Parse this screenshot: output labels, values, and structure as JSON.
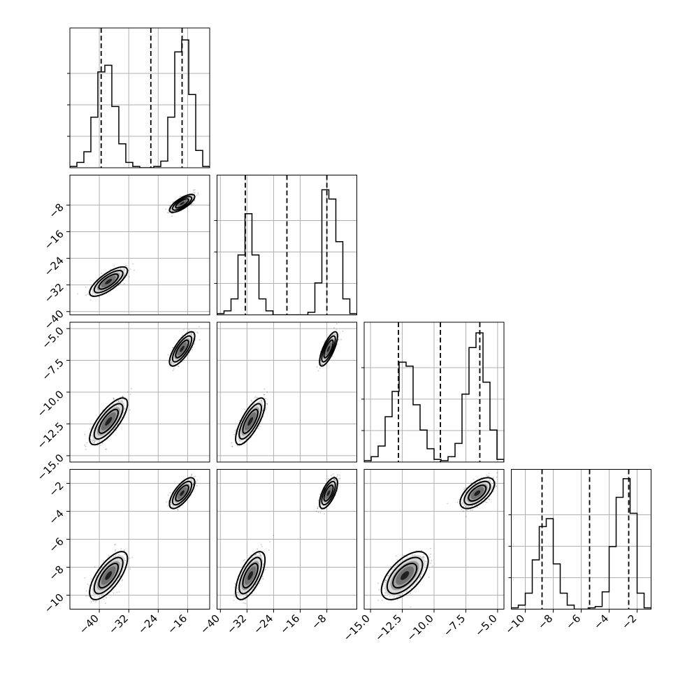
{
  "chart_data": {
    "type": "corner",
    "n_params": 4,
    "grid": true,
    "colors": {
      "main": "#000000",
      "grid": "#b0b0b0",
      "background": "#ffffff"
    },
    "params": [
      {
        "range": [
          -48,
          -10
        ],
        "ticks": [
          -40,
          -32,
          -24,
          -16
        ],
        "tick_labels": [
          "−40",
          "−32",
          "−24",
          "−16"
        ],
        "modes": [
          {
            "mean": -37.5,
            "sd": 2.1,
            "weight": 0.5
          },
          {
            "mean": -17.5,
            "sd": 1.4,
            "weight": 0.5
          }
        ],
        "quantiles": [
          -39.5,
          -26.0,
          -17.5
        ],
        "histogram": {
          "edges": [
            -48,
            -46.1,
            -44.2,
            -42.3,
            -40.4,
            -38.5,
            -36.6,
            -34.7,
            -32.8,
            -30.9,
            -29,
            -27.1,
            -25.2,
            -23.3,
            -21.4,
            -19.5,
            -17.6,
            -15.7,
            -13.8,
            -11.9,
            -10
          ],
          "counts": [
            0.01,
            0.04,
            0.12,
            0.38,
            0.72,
            0.77,
            0.46,
            0.18,
            0.04,
            0.01,
            0.0,
            0.0,
            0.01,
            0.05,
            0.38,
            0.87,
            0.96,
            0.55,
            0.13,
            0.01
          ]
        }
      },
      {
        "range": [
          -41,
          1
        ],
        "ticks": [
          -40,
          -32,
          -24,
          -16,
          -8
        ],
        "tick_labels": [
          "−40",
          "−32",
          "−24",
          "−16",
          "−8"
        ],
        "modes": [
          {
            "mean": -31.0,
            "sd": 1.8,
            "weight": 0.5
          },
          {
            "mean": -7.5,
            "sd": 1.1,
            "weight": 0.5
          }
        ],
        "quantiles": [
          -32.5,
          -20.0,
          -8.0
        ],
        "histogram": {
          "edges": [
            -41,
            -38.9,
            -36.8,
            -34.7,
            -32.6,
            -30.5,
            -28.4,
            -26.3,
            -24.2,
            -22.1,
            -20,
            -17.9,
            -15.8,
            -13.7,
            -11.6,
            -9.5,
            -7.4,
            -5.3,
            -3.2,
            -1.1,
            1
          ],
          "counts": [
            0.01,
            0.03,
            0.12,
            0.45,
            0.76,
            0.45,
            0.12,
            0.03,
            0.0,
            0.0,
            0.0,
            0.0,
            0.0,
            0.02,
            0.24,
            0.94,
            0.87,
            0.55,
            0.12,
            0.01
          ]
        }
      },
      {
        "range": [
          -15.5,
          -4.5
        ],
        "ticks": [
          -15.0,
          -12.5,
          -10.0,
          -7.5,
          -5.0
        ],
        "tick_labels": [
          "−15.0",
          "−12.5",
          "−10.0",
          "−7.5",
          "−5.0"
        ],
        "modes": [
          {
            "mean": -12.3,
            "sd": 0.75,
            "weight": 0.5
          },
          {
            "mean": -6.6,
            "sd": 0.55,
            "weight": 0.5
          }
        ],
        "quantiles": [
          -12.8,
          -9.5,
          -6.4
        ],
        "histogram": {
          "edges": [
            -15.5,
            -14.95,
            -14.4,
            -13.85,
            -13.3,
            -12.75,
            -12.2,
            -11.65,
            -11.1,
            -10.55,
            -10,
            -9.45,
            -8.9,
            -8.35,
            -7.8,
            -7.25,
            -6.7,
            -6.15,
            -5.6,
            -5.05,
            -4.5
          ],
          "counts": [
            0.01,
            0.04,
            0.12,
            0.34,
            0.53,
            0.75,
            0.72,
            0.43,
            0.24,
            0.1,
            0.02,
            0.01,
            0.04,
            0.14,
            0.51,
            0.86,
            0.97,
            0.6,
            0.24,
            0.02
          ]
        }
      },
      {
        "range": [
          -11,
          -1
        ],
        "ticks": [
          -10,
          -8,
          -6,
          -4,
          -2
        ],
        "tick_labels": [
          "−10",
          "−8",
          "−6",
          "−4",
          "−2"
        ],
        "modes": [
          {
            "mean": -8.6,
            "sd": 0.7,
            "weight": 0.5
          },
          {
            "mean": -2.7,
            "sd": 0.45,
            "weight": 0.5
          }
        ],
        "quantiles": [
          -8.8,
          -5.4,
          -2.6
        ],
        "histogram": {
          "edges": [
            -11,
            -10.5,
            -10,
            -9.5,
            -9,
            -8.5,
            -8,
            -7.5,
            -7,
            -6.5,
            -6,
            -5.5,
            -5,
            -4.5,
            -4,
            -3.5,
            -3,
            -2.5,
            -2,
            -1.5,
            -1
          ],
          "counts": [
            0.01,
            0.03,
            0.12,
            0.37,
            0.62,
            0.68,
            0.34,
            0.12,
            0.03,
            0.0,
            0.0,
            0.01,
            0.02,
            0.13,
            0.47,
            0.84,
            0.98,
            0.72,
            0.12,
            0.01
          ]
        }
      }
    ],
    "correlations": {
      "1_0": 0.75,
      "2_0": 0.75,
      "2_1": 0.75,
      "3_0": 0.7,
      "3_1": 0.65,
      "3_2": 0.6
    },
    "scatter_points_per_panel": 1400
  }
}
